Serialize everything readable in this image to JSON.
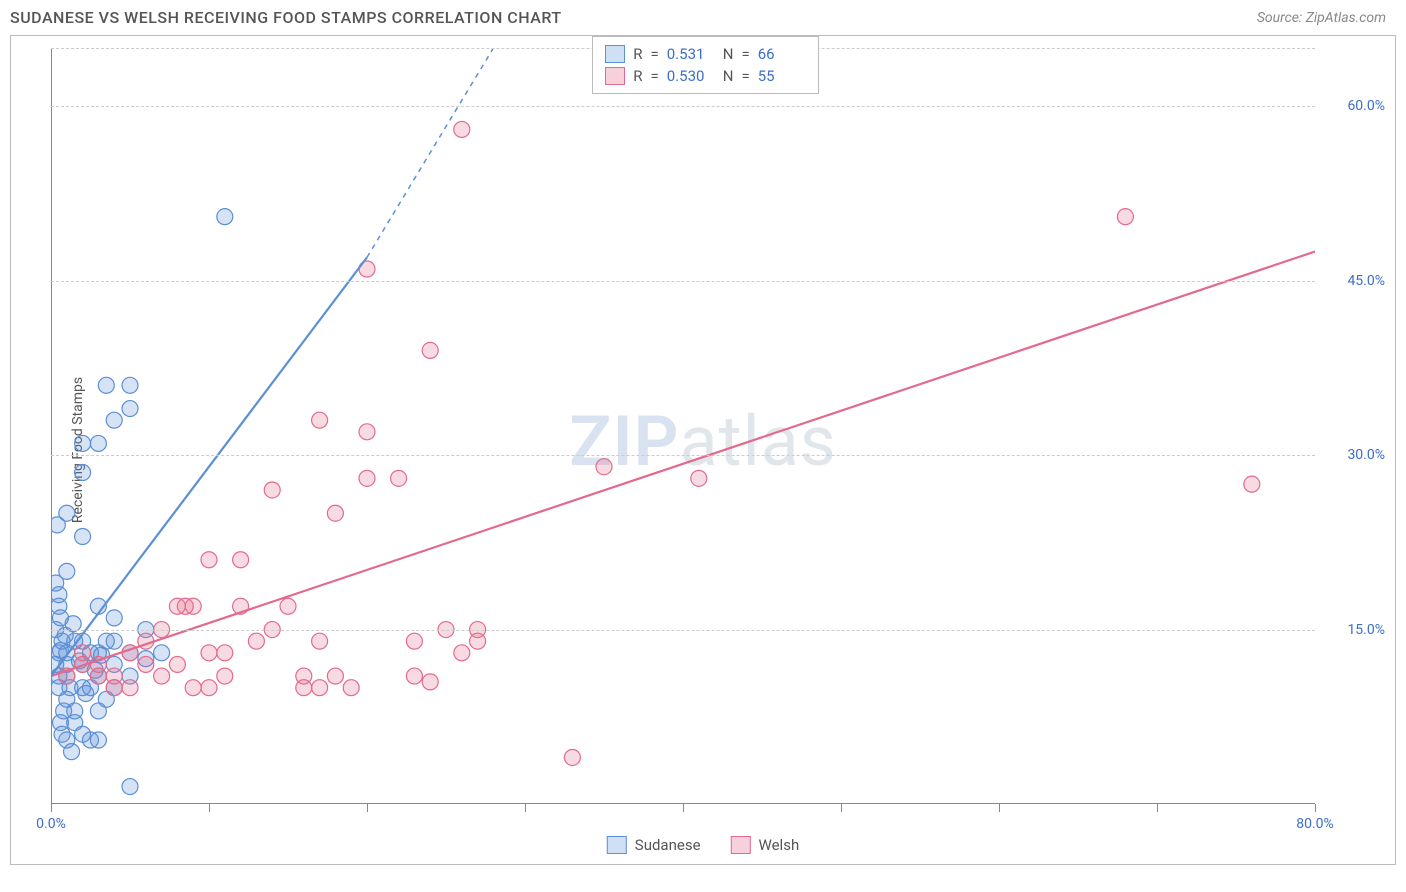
{
  "header": {
    "title": "SUDANESE VS WELSH RECEIVING FOOD STAMPS CORRELATION CHART",
    "source": "Source: ZipAtlas.com"
  },
  "watermark": {
    "zip": "ZIP",
    "atlas": "atlas"
  },
  "ylabel": "Receiving Food Stamps",
  "chart": {
    "type": "scatter",
    "xlim": [
      0,
      80
    ],
    "ylim": [
      0,
      65
    ],
    "background_color": "#ffffff",
    "grid_color": "#cccccc",
    "axis_color": "#888888",
    "tick_label_color": "#3b6fc9",
    "marker_radius": 8,
    "marker_stroke_width": 1.2,
    "marker_fill_opacity": 0.25,
    "trend_line_width": 2.2,
    "y_gridlines": [
      15,
      30,
      45,
      60,
      65
    ],
    "y_tick_labels": [
      {
        "v": 15,
        "t": "15.0%"
      },
      {
        "v": 30,
        "t": "30.0%"
      },
      {
        "v": 45,
        "t": "45.0%"
      },
      {
        "v": 60,
        "t": "60.0%"
      }
    ],
    "x_ticks": [
      0,
      10,
      20,
      30,
      40,
      50,
      60,
      70,
      80
    ],
    "x_tick_labels": [
      {
        "v": 0,
        "t": "0.0%"
      },
      {
        "v": 80,
        "t": "80.0%"
      }
    ],
    "series": {
      "sudanese": {
        "label": "Sudanese",
        "color": "#5b8fd6",
        "fill": "#cfe0f5",
        "R": "0.531",
        "N": "66",
        "trend": {
          "x1": 0,
          "y1": 11,
          "x2": 20,
          "y2": 47
        },
        "trend_dash": {
          "x1": 20,
          "y1": 47,
          "x2": 28,
          "y2": 65
        },
        "points": [
          [
            0.3,
            12
          ],
          [
            0.5,
            13
          ],
          [
            0.5,
            11
          ],
          [
            0.7,
            14
          ],
          [
            0.3,
            15
          ],
          [
            0.5,
            10
          ],
          [
            1,
            13
          ],
          [
            1,
            12
          ],
          [
            1,
            11
          ],
          [
            1,
            9
          ],
          [
            0.8,
            8
          ],
          [
            1.2,
            10
          ],
          [
            0.6,
            16
          ],
          [
            0.5,
            17
          ],
          [
            0.5,
            18
          ],
          [
            1,
            20
          ],
          [
            1.5,
            14
          ],
          [
            2,
            14
          ],
          [
            2,
            12
          ],
          [
            2.5,
            13
          ],
          [
            2,
            10
          ],
          [
            2.5,
            10
          ],
          [
            3,
            11
          ],
          [
            3,
            13
          ],
          [
            3.5,
            14
          ],
          [
            3,
            8
          ],
          [
            1.5,
            8
          ],
          [
            1.5,
            7
          ],
          [
            2,
            6
          ],
          [
            2.5,
            5.5
          ],
          [
            3,
            5.5
          ],
          [
            1,
            5.5
          ],
          [
            1.3,
            4.5
          ],
          [
            0.7,
            6
          ],
          [
            0.6,
            7
          ],
          [
            0.3,
            19
          ],
          [
            0.4,
            24
          ],
          [
            1,
            25
          ],
          [
            2,
            23
          ],
          [
            2,
            31
          ],
          [
            3,
            31
          ],
          [
            4,
            33
          ],
          [
            5,
            34
          ],
          [
            3.5,
            36
          ],
          [
            5,
            36
          ],
          [
            2,
            28.5
          ],
          [
            11,
            50.5
          ],
          [
            5,
            1.5
          ],
          [
            3,
            17
          ],
          [
            4,
            16
          ],
          [
            4,
            14
          ],
          [
            5,
            13
          ],
          [
            6,
            15
          ],
          [
            4,
            12
          ],
          [
            5,
            11
          ],
          [
            6,
            12.5
          ],
          [
            7,
            13
          ],
          [
            4,
            10
          ],
          [
            3.5,
            9
          ],
          [
            2.2,
            9.5
          ],
          [
            1.8,
            12.3
          ],
          [
            0.9,
            14.5
          ],
          [
            1.4,
            15.5
          ],
          [
            2.8,
            11.5
          ],
          [
            3.2,
            12.8
          ],
          [
            0.6,
            13.2
          ]
        ]
      },
      "welsh": {
        "label": "Welsh",
        "color": "#e36a8d",
        "fill": "#f6d1dc",
        "R": "0.530",
        "N": "55",
        "trend": {
          "x1": 0,
          "y1": 11,
          "x2": 80,
          "y2": 47.5
        },
        "points": [
          [
            1,
            11
          ],
          [
            2,
            12
          ],
          [
            2,
            13
          ],
          [
            3,
            11
          ],
          [
            3,
            12
          ],
          [
            4,
            11
          ],
          [
            4,
            10
          ],
          [
            5,
            13
          ],
          [
            5,
            10
          ],
          [
            6,
            12
          ],
          [
            6,
            14
          ],
          [
            7,
            11
          ],
          [
            7,
            15
          ],
          [
            8,
            12
          ],
          [
            8,
            17
          ],
          [
            8.5,
            17
          ],
          [
            9,
            17
          ],
          [
            10,
            13
          ],
          [
            10,
            21
          ],
          [
            11,
            13
          ],
          [
            12,
            17
          ],
          [
            12,
            21
          ],
          [
            13,
            14
          ],
          [
            14,
            27
          ],
          [
            14,
            15
          ],
          [
            15,
            17
          ],
          [
            16,
            10
          ],
          [
            16,
            11
          ],
          [
            17,
            14
          ],
          [
            17,
            10
          ],
          [
            18,
            11
          ],
          [
            18,
            25
          ],
          [
            19,
            10
          ],
          [
            20,
            28
          ],
          [
            20,
            32
          ],
          [
            22,
            28
          ],
          [
            23,
            14
          ],
          [
            23,
            11
          ],
          [
            24,
            39
          ],
          [
            24,
            10.5
          ],
          [
            25,
            15
          ],
          [
            26,
            13
          ],
          [
            27,
            14
          ],
          [
            27,
            15
          ],
          [
            26,
            58
          ],
          [
            20,
            46
          ],
          [
            33,
            4
          ],
          [
            35,
            29
          ],
          [
            41,
            28
          ],
          [
            17,
            33
          ],
          [
            68,
            50.5
          ],
          [
            76,
            27.5
          ],
          [
            10,
            10
          ],
          [
            11,
            11
          ],
          [
            9,
            10
          ]
        ]
      }
    }
  },
  "legend_labels": {
    "R": "R",
    "eq": "=",
    "N": "N"
  }
}
